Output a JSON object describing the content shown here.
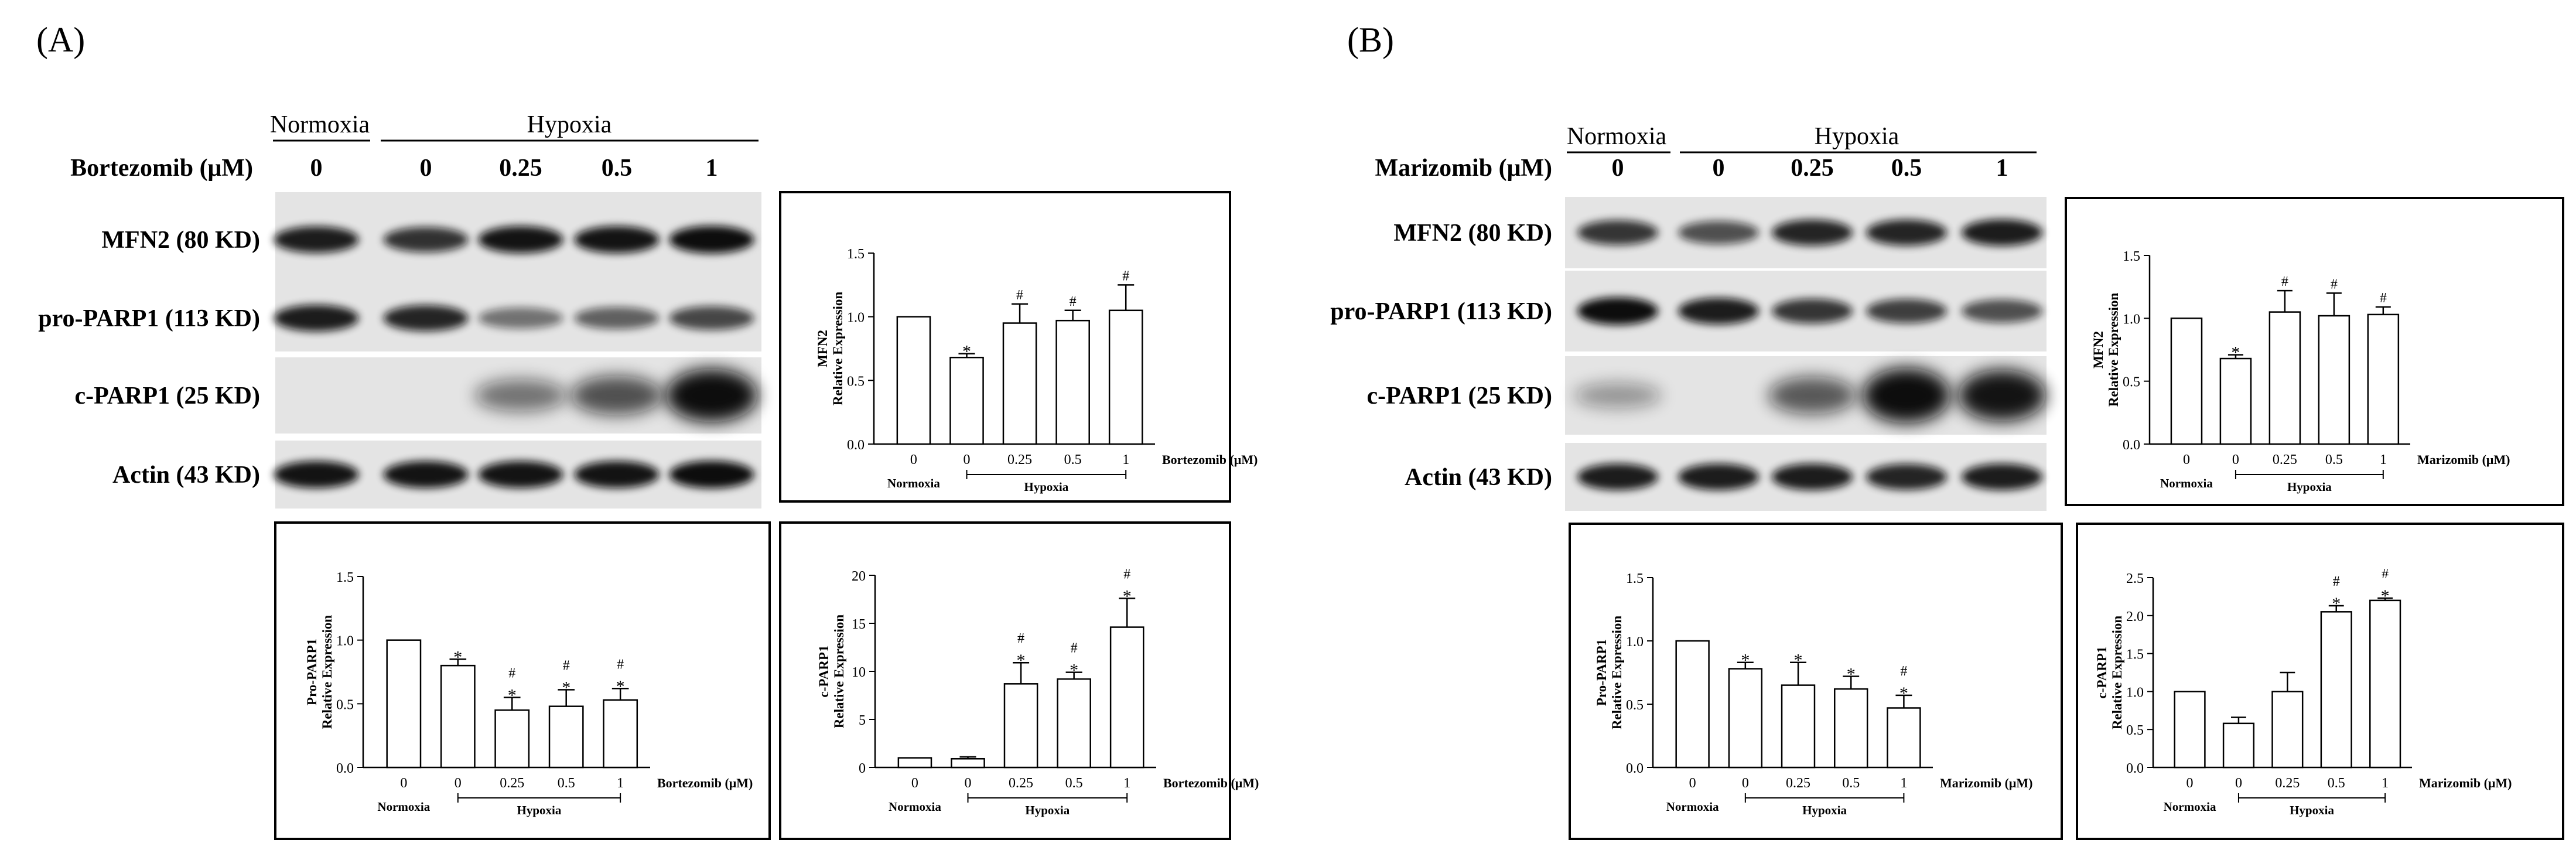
{
  "panels": [
    {
      "label": "(A)",
      "drug_label": "Bortezomib (μM)",
      "group_normoxia": "Normoxia",
      "group_hypoxia": "Hypoxia",
      "doses": [
        "0",
        "0",
        "0.25",
        "0.5",
        "1"
      ],
      "blots": [
        {
          "label": "MFN2 (80 KD)",
          "bands": [
            0.85,
            0.72,
            0.9,
            0.9,
            0.95
          ]
        },
        {
          "label": "pro-PARP1 (113 KD)",
          "bands": [
            0.85,
            0.8,
            0.35,
            0.45,
            0.6
          ]
        },
        {
          "label": "c-PARP1 (25 KD)",
          "bands": [
            0.0,
            0.0,
            0.35,
            0.55,
            0.95
          ]
        },
        {
          "label": "Actin (43 KD)",
          "bands": [
            0.9,
            0.9,
            0.9,
            0.9,
            0.95
          ]
        }
      ]
    },
    {
      "label": "(B)",
      "drug_label": "Marizomib (μM)",
      "group_normoxia": "Normoxia",
      "group_hypoxia": "Hypoxia",
      "doses": [
        "0",
        "0",
        "0.25",
        "0.5",
        "1"
      ],
      "blots": [
        {
          "label": "MFN2 (80 KD)",
          "bands": [
            0.7,
            0.55,
            0.8,
            0.8,
            0.85
          ]
        },
        {
          "label": "pro-PARP1 (113 KD)",
          "bands": [
            0.95,
            0.85,
            0.7,
            0.65,
            0.55
          ]
        },
        {
          "label": "c-PARP1 (25 KD)",
          "bands": [
            0.15,
            0.0,
            0.5,
            1.0,
            0.9
          ]
        },
        {
          "label": "Actin (43 KD)",
          "bands": [
            0.85,
            0.85,
            0.85,
            0.8,
            0.85
          ]
        }
      ]
    }
  ],
  "chart_data": [
    {
      "type": "bar",
      "panel": "A",
      "categories": [
        "0",
        "0",
        "0.25",
        "0.5",
        "1"
      ],
      "values": [
        1.0,
        0.68,
        0.95,
        0.97,
        1.05
      ],
      "errors": [
        0,
        0.03,
        0.15,
        0.08,
        0.2
      ],
      "marks": [
        "",
        "*",
        "#",
        "#",
        "#"
      ],
      "ylabel_lines": [
        "MFN2",
        "Relative Expression"
      ],
      "xlabel": "Bortezomib (μM)",
      "group_normoxia": "Normoxia",
      "group_hypoxia": "Hypoxia",
      "ylim": [
        0,
        1.5
      ],
      "yticks": [
        "0.0",
        "0.5",
        "1.0",
        "1.5"
      ]
    },
    {
      "type": "bar",
      "panel": "A",
      "categories": [
        "0",
        "0",
        "0.25",
        "0.5",
        "1"
      ],
      "values": [
        1.0,
        0.8,
        0.45,
        0.48,
        0.53
      ],
      "errors": [
        0,
        0.05,
        0.1,
        0.13,
        0.09
      ],
      "marks": [
        "",
        "*",
        "#\n*",
        "#\n*",
        "#\n*"
      ],
      "ylabel_lines": [
        "Pro-PARP1",
        "Relative Expression"
      ],
      "xlabel": "Bortezomib (μM)",
      "group_normoxia": "Normoxia",
      "group_hypoxia": "Hypoxia",
      "ylim": [
        0,
        1.5
      ],
      "yticks": [
        "0.0",
        "0.5",
        "1.0",
        "1.5"
      ]
    },
    {
      "type": "bar",
      "panel": "A",
      "categories": [
        "0",
        "0",
        "0.25",
        "0.5",
        "1"
      ],
      "values": [
        1.0,
        0.9,
        8.7,
        9.2,
        14.6
      ],
      "errors": [
        0,
        0.2,
        2.2,
        0.7,
        3.0
      ],
      "marks": [
        "",
        "",
        "#\n*",
        "#\n*",
        "#\n*"
      ],
      "ylabel_lines": [
        "c-PARP1",
        "Relative Expression"
      ],
      "xlabel": "Bortezomib (μM)",
      "group_normoxia": "Normoxia",
      "group_hypoxia": "Hypoxia",
      "ylim": [
        0,
        20
      ],
      "yticks": [
        "0",
        "5",
        "10",
        "15",
        "20"
      ]
    },
    {
      "type": "bar",
      "panel": "B",
      "categories": [
        "0",
        "0",
        "0.25",
        "0.5",
        "1"
      ],
      "values": [
        1.0,
        0.68,
        1.05,
        1.02,
        1.03
      ],
      "errors": [
        0,
        0.03,
        0.17,
        0.18,
        0.06
      ],
      "marks": [
        "",
        "*",
        "#",
        "#",
        "#"
      ],
      "ylabel_lines": [
        "MFN2",
        "Relative Expression"
      ],
      "xlabel": "Marizomib (μM)",
      "group_normoxia": "Normoxia",
      "group_hypoxia": "Hypoxia",
      "ylim": [
        0,
        1.5
      ],
      "yticks": [
        "0.0",
        "0.5",
        "1.0",
        "1.5"
      ]
    },
    {
      "type": "bar",
      "panel": "B",
      "categories": [
        "0",
        "0",
        "0.25",
        "0.5",
        "1"
      ],
      "values": [
        1.0,
        0.78,
        0.65,
        0.62,
        0.47
      ],
      "errors": [
        0,
        0.05,
        0.18,
        0.1,
        0.1
      ],
      "marks": [
        "",
        "*",
        "*",
        "*",
        "#\n*"
      ],
      "ylabel_lines": [
        "Pro-PARP1",
        "Relative Expression"
      ],
      "xlabel": "Marizomib (μM)",
      "group_normoxia": "Normoxia",
      "group_hypoxia": "Hypoxia",
      "ylim": [
        0,
        1.5
      ],
      "yticks": [
        "0.0",
        "0.5",
        "1.0",
        "1.5"
      ]
    },
    {
      "type": "bar",
      "panel": "B",
      "categories": [
        "0",
        "0",
        "0.25",
        "0.5",
        "1"
      ],
      "values": [
        1.0,
        0.58,
        1.0,
        2.05,
        2.2
      ],
      "errors": [
        0,
        0.08,
        0.25,
        0.08,
        0.03
      ],
      "marks": [
        "",
        "",
        "",
        "#\n*",
        "#\n*"
      ],
      "ylabel_lines": [
        "c-PARP1",
        "Relative Expression"
      ],
      "xlabel": "Marizomib (μM)",
      "group_normoxia": "Normoxia",
      "group_hypoxia": "Hypoxia",
      "ylim": [
        0,
        2.5
      ],
      "yticks": [
        "0.0",
        "0.5",
        "1.0",
        "1.5",
        "2.0",
        "2.5"
      ]
    }
  ]
}
